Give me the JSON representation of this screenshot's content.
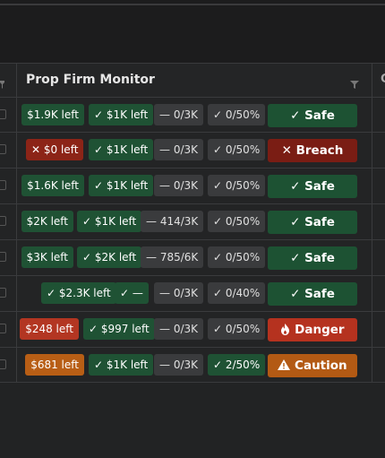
{
  "grid": {
    "column_title": "Prop Firm Monitor",
    "rows": [
      {
        "profit_left": "$1.9K left",
        "loss_left": "✓ $1K left",
        "trades": "— 0/3K",
        "ratio": "✓ 0/50%",
        "status": "Safe",
        "status_icon": "check-icon"
      },
      {
        "profit_left": "$0 left",
        "loss_left": "✓ $1K left",
        "trades": "— 0/3K",
        "ratio": "✓ 0/50%",
        "status": "Breach",
        "status_icon": "x-icon"
      },
      {
        "profit_left": "$1.6K left",
        "loss_left": "✓ $1K left",
        "trades": "— 0/3K",
        "ratio": "✓ 0/50%",
        "status": "Safe",
        "status_icon": "check-icon"
      },
      {
        "profit_left": "$2K left",
        "loss_left": "✓ $1K left",
        "trades": "— 414/3K",
        "ratio": "✓ 0/50%",
        "status": "Safe",
        "status_icon": "check-icon"
      },
      {
        "profit_left": "$3K left",
        "loss_left": "✓ $2K left",
        "trades": "— 785/6K",
        "ratio": "✓ 0/50%",
        "status": "Safe",
        "status_icon": "check-icon"
      },
      {
        "profit_left": "✓ $2.3K left",
        "loss_left": "✓ —",
        "trades": "— 0/3K",
        "ratio": "✓ 0/40%",
        "status": "Safe",
        "status_icon": "check-icon"
      },
      {
        "profit_left": "$248 left",
        "loss_left": "✓ $997 left",
        "trades": "— 0/3K",
        "ratio": "✓ 0/50%",
        "status": "Danger",
        "status_icon": "flame-icon"
      },
      {
        "profit_left": "$681 left",
        "loss_left": "✓ $1K left",
        "trades": "— 0/3K",
        "ratio": "✓ 2/50%",
        "status": "Caution",
        "status_icon": "warning-icon"
      }
    ]
  },
  "colors": {
    "safe": "#1d5233",
    "breach": "#7a1d14",
    "danger": "#b5321f",
    "caution": "#b35a14",
    "chip_green": "#1f5234",
    "chip_gray": "#3a3b3d"
  }
}
